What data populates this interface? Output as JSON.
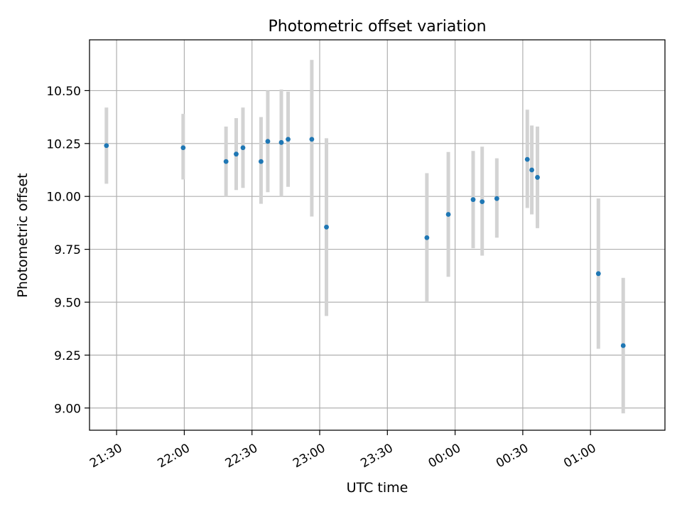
{
  "chart_data": {
    "type": "scatter",
    "title": "Photometric offset variation",
    "xlabel": "UTC time",
    "ylabel": "Photometric offset",
    "xlim": [
      "2024-01-01T21:18:00",
      "2024-01-02T01:33:00"
    ],
    "ylim": [
      8.895,
      10.74
    ],
    "grid": true,
    "x_ticks": [
      "2024-01-01T21:30:00",
      "2024-01-01T22:00:00",
      "2024-01-01T22:30:00",
      "2024-01-01T23:00:00",
      "2024-01-01T23:30:00",
      "2024-01-02T00:00:00",
      "2024-01-02T00:30:00",
      "2024-01-02T01:00:00"
    ],
    "x_tick_labels": [
      "21:30",
      "22:00",
      "22:30",
      "23:00",
      "23:30",
      "00:00",
      "00:30",
      "01:00"
    ],
    "y_ticks": [
      9.0,
      9.25,
      9.5,
      9.75,
      10.0,
      10.25,
      10.5
    ],
    "y_tick_labels": [
      "9.00",
      "9.25",
      "9.50",
      "9.75",
      "10.00",
      "10.25",
      "10.50"
    ],
    "colors": {
      "point": "#1f77b4",
      "errorbar": "#d3d3d3",
      "grid": "#b0b0b0"
    },
    "points": [
      {
        "time": "2024-01-01T21:25:30",
        "y": 10.24,
        "low": 10.06,
        "high": 10.42
      },
      {
        "time": "2024-01-01T21:59:30",
        "y": 10.23,
        "low": 10.08,
        "high": 10.39
      },
      {
        "time": "2024-01-01T22:18:30",
        "y": 10.165,
        "low": 10.0,
        "high": 10.33
      },
      {
        "time": "2024-01-01T22:23:00",
        "y": 10.2,
        "low": 10.03,
        "high": 10.37
      },
      {
        "time": "2024-01-01T22:26:00",
        "y": 10.23,
        "low": 10.04,
        "high": 10.42
      },
      {
        "time": "2024-01-01T22:34:00",
        "y": 10.165,
        "low": 9.965,
        "high": 10.375
      },
      {
        "time": "2024-01-01T22:37:00",
        "y": 10.26,
        "low": 10.02,
        "high": 10.5
      },
      {
        "time": "2024-01-01T22:43:00",
        "y": 10.255,
        "low": 10.0,
        "high": 10.505
      },
      {
        "time": "2024-01-01T22:46:00",
        "y": 10.27,
        "low": 10.045,
        "high": 10.495
      },
      {
        "time": "2024-01-01T22:56:30",
        "y": 10.27,
        "low": 9.905,
        "high": 10.645
      },
      {
        "time": "2024-01-01T23:03:00",
        "y": 9.855,
        "low": 9.435,
        "high": 10.275
      },
      {
        "time": "2024-01-01T23:47:30",
        "y": 9.805,
        "low": 9.5,
        "high": 10.11
      },
      {
        "time": "2024-01-01T23:57:00",
        "y": 9.915,
        "low": 9.62,
        "high": 10.21
      },
      {
        "time": "2024-01-02T00:08:00",
        "y": 9.985,
        "low": 9.755,
        "high": 10.215
      },
      {
        "time": "2024-01-02T00:12:00",
        "y": 9.975,
        "low": 9.72,
        "high": 10.235
      },
      {
        "time": "2024-01-02T00:18:30",
        "y": 9.99,
        "low": 9.805,
        "high": 10.18
      },
      {
        "time": "2024-01-02T00:32:00",
        "y": 10.175,
        "low": 9.945,
        "high": 10.41
      },
      {
        "time": "2024-01-02T00:34:00",
        "y": 10.125,
        "low": 9.915,
        "high": 10.335
      },
      {
        "time": "2024-01-02T00:36:30",
        "y": 10.09,
        "low": 9.85,
        "high": 10.33
      },
      {
        "time": "2024-01-02T01:03:30",
        "y": 9.635,
        "low": 9.28,
        "high": 9.99
      },
      {
        "time": "2024-01-02T01:14:30",
        "y": 9.295,
        "low": 8.975,
        "high": 9.615
      }
    ]
  }
}
